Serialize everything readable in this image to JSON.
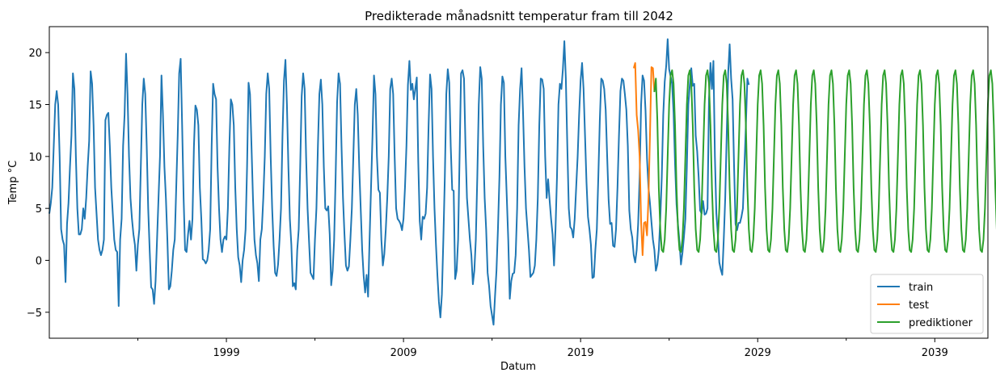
{
  "chart_data": {
    "type": "line",
    "title": "Predikterade månadsnitt temperatur fram till 2042",
    "xlabel": "Datum",
    "ylabel": "Temp °C",
    "xlim": [
      1989.0,
      2042.0
    ],
    "ylim": [
      -7.5,
      22.5
    ],
    "x_ticks": [
      {
        "value": 1999,
        "label": "1999"
      },
      {
        "value": 2009,
        "label": "2009"
      },
      {
        "value": 2019,
        "label": "2019"
      },
      {
        "value": 2029,
        "label": "2029"
      },
      {
        "value": 2039,
        "label": "2039"
      }
    ],
    "x_minor_ticks": [
      1994,
      2004,
      2014,
      2024,
      2034
    ],
    "y_ticks": [
      {
        "value": -5,
        "label": "−5"
      },
      {
        "value": 0,
        "label": "0"
      },
      {
        "value": 5,
        "label": "5"
      },
      {
        "value": 10,
        "label": "10"
      },
      {
        "value": 15,
        "label": "15"
      },
      {
        "value": 20,
        "label": "20"
      }
    ],
    "legend_position": "lower-right",
    "colors": {
      "train": "#1f77b4",
      "test": "#ff7f0e",
      "prediktioner": "#2ca02c"
    },
    "series": [
      {
        "name": "train",
        "start": 1989.0,
        "step": 0.0833333,
        "values": [
          4.5,
          5.5,
          7,
          11,
          15,
          16.3,
          15,
          10,
          3,
          2,
          1.5,
          -2.1,
          3.5,
          5.5,
          9,
          12,
          18,
          16.5,
          10,
          5,
          2.5,
          2.5,
          3,
          5,
          4,
          6,
          9,
          11.5,
          18.2,
          17,
          13,
          7,
          4.5,
          2,
          1,
          0.5,
          1,
          2,
          13.5,
          14,
          14.2,
          11,
          7,
          4.5,
          2,
          1,
          0.8,
          -4.4,
          2,
          4,
          11,
          14,
          19.9,
          16,
          10,
          6,
          4,
          2.5,
          1.5,
          -1,
          1.5,
          3,
          9,
          15,
          17.5,
          16,
          11,
          5,
          1,
          -2.6,
          -2.8,
          -4.2,
          -2,
          2,
          6,
          10,
          17.8,
          14,
          9,
          6,
          2,
          -2.8,
          -2.5,
          -1,
          1,
          2,
          7,
          12,
          18,
          19.4,
          13,
          6,
          1,
          0.8,
          2.5,
          3.8,
          2,
          4,
          11,
          14.9,
          14.5,
          13,
          7,
          4,
          0.1,
          0,
          -0.3,
          0,
          1,
          3,
          11,
          17,
          16,
          15.5,
          9,
          5,
          2,
          0.8,
          2,
          2.3,
          2,
          5,
          11,
          15.5,
          15,
          13,
          7,
          3,
          0.3,
          -0.5,
          -2.1,
          0,
          1,
          3,
          9,
          17.1,
          16,
          11,
          6,
          2,
          0.5,
          -0.3,
          -2,
          2,
          3,
          6,
          10,
          16,
          18,
          16.5,
          10,
          5,
          1.4,
          -1.2,
          -1.5,
          -0.4,
          2,
          5,
          12,
          17.3,
          19.3,
          15,
          9,
          4,
          1.5,
          -2.5,
          -2.2,
          -2.8,
          1,
          3,
          9,
          15.8,
          18,
          16.5,
          10,
          5,
          1.8,
          -1.2,
          -1.5,
          -1.8,
          2,
          5,
          11,
          16,
          17.4,
          15,
          9,
          5,
          4.8,
          5.2,
          2.5,
          -2.4,
          -1,
          2,
          8,
          15.2,
          18,
          17,
          11,
          6,
          2.5,
          -0.5,
          -1,
          -0.6,
          2,
          5,
          10,
          15,
          16.5,
          14,
          9,
          5,
          1,
          -1.5,
          -3.1,
          -1.4,
          -3.5,
          2,
          7,
          12,
          17.8,
          16,
          10,
          6.8,
          6.5,
          2,
          -0.5,
          0.6,
          3,
          6,
          10,
          16.5,
          17.5,
          16,
          10,
          5,
          4,
          3.8,
          3.5,
          2.9,
          4,
          7,
          11,
          16.9,
          19.2,
          16.4,
          17,
          15.5,
          16.5,
          17.6,
          9.5,
          3.8,
          2,
          4.2,
          4,
          4.5,
          7,
          13,
          17.9,
          16.5,
          10,
          5,
          1.5,
          -1.5,
          -4,
          -5.5,
          -3.3,
          2,
          8,
          16,
          18.4,
          17.1,
          11,
          6.8,
          6.7,
          -1.8,
          -1,
          2,
          10,
          18,
          18.3,
          17.5,
          11,
          6,
          4,
          2,
          0.5,
          -2.3,
          -1,
          2,
          8,
          15,
          18.6,
          17.5,
          11,
          6,
          3,
          -1.2,
          -2.5,
          -4.4,
          -5.3,
          -6.2,
          -3.5,
          -1,
          3,
          8,
          15,
          17.7,
          17.1,
          10,
          6,
          1.9,
          -3.7,
          -2,
          -1.3,
          -1.2,
          0.5,
          5,
          13,
          16.5,
          18.5,
          14.2,
          9,
          5,
          3,
          1,
          -1.6,
          -1.4,
          -1.2,
          -0.5,
          2,
          6,
          13,
          17.5,
          17.4,
          16.5,
          10,
          6,
          7.8,
          5.8,
          4,
          2.5,
          -0.5,
          3,
          8,
          15,
          17,
          16.5,
          18.4,
          21.1,
          17.5,
          11,
          5,
          3.2,
          3,
          2.2,
          4,
          7,
          10,
          14,
          17.3,
          19,
          16.5,
          12,
          7.5,
          4.2,
          3,
          1.5,
          -1.7,
          -1.6,
          1,
          3,
          8,
          13.4,
          17.5,
          17.3,
          16.5,
          14.5,
          10,
          5.8,
          3.5,
          3.6,
          1.4,
          1.3,
          3,
          7,
          12,
          16.3,
          17.5,
          17.3,
          16,
          14.5,
          11,
          4.8,
          3,
          2.2,
          0.5,
          -0.2,
          1,
          3.5,
          8,
          15,
          17.8,
          17.3,
          14.4,
          9.8,
          7,
          5.5,
          3.7,
          2,
          1,
          -1,
          -0.4,
          1,
          4,
          8,
          14,
          17.2,
          18.7,
          21.3,
          18.4,
          17.7,
          17,
          14.2,
          9.3,
          5.4,
          3.4,
          1.8,
          -0.4,
          0.7,
          2.2,
          4,
          9,
          15,
          16.9,
          18.5,
          16.8,
          17,
          12,
          10.5,
          8,
          4.8,
          4.5,
          5.7,
          4.4,
          4.5,
          5,
          15.5,
          19,
          16.5,
          19.2,
          10,
          4.5,
          2.5,
          -0.2,
          -0.9,
          -1.4,
          2,
          6,
          12,
          18,
          20.8,
          17.5,
          15.5,
          9,
          3.5,
          2.9,
          3.6,
          3.6,
          4.2,
          5,
          9,
          13,
          17.5,
          16.9
        ]
      },
      {
        "name": "test",
        "start": 2022.0,
        "step": 0.0833333,
        "values": [
          18.5,
          19,
          14,
          12.5,
          10,
          3.7,
          0.5,
          3.6,
          3.7,
          2.4,
          6,
          12,
          18.6,
          18.5,
          16.2
        ]
      },
      {
        "name": "prediktioner",
        "start": 2023.1667,
        "step": 0.0833333,
        "values": [
          16.2,
          17.5,
          13.5,
          7,
          3,
          1,
          0.8,
          2,
          5,
          10,
          15,
          17.8,
          18.3,
          17,
          13,
          7,
          3,
          1,
          0.8,
          2,
          5,
          10,
          15,
          17.8,
          18.3,
          17,
          13,
          7,
          3,
          1,
          0.8,
          2,
          5,
          10,
          15,
          17.8,
          18.3,
          17,
          13,
          7,
          3,
          1,
          0.8,
          2,
          5,
          10,
          15,
          17.8,
          18.3,
          17,
          13,
          7,
          3,
          1,
          0.8,
          2,
          5,
          10,
          15,
          17.8,
          18.3,
          17,
          13,
          7,
          3,
          1,
          0.8,
          2,
          5,
          10,
          15,
          17.8,
          18.3,
          17,
          13,
          7,
          3,
          1,
          0.8,
          2,
          5,
          10,
          15,
          17.8,
          18.3,
          17,
          13,
          7,
          3,
          1,
          0.8,
          2,
          5,
          10,
          15,
          17.8,
          18.3,
          17,
          13,
          7,
          3,
          1,
          0.8,
          2,
          5,
          10,
          15,
          17.8,
          18.3,
          17,
          13,
          7,
          3,
          1,
          0.8,
          2,
          5,
          10,
          15,
          17.8,
          18.3,
          17,
          13,
          7,
          3,
          1,
          0.8,
          2,
          5,
          10,
          15,
          17.8,
          18.3,
          17,
          13,
          7,
          3,
          1,
          0.8,
          2,
          5,
          10,
          15,
          17.8,
          18.3,
          17,
          13,
          7,
          3,
          1,
          0.8,
          2,
          5,
          10,
          15,
          17.8,
          18.3,
          17,
          13,
          7,
          3,
          1,
          0.8,
          2,
          5,
          10,
          15,
          17.8,
          18.3,
          17,
          13,
          7,
          3,
          1,
          0.8,
          2,
          5,
          10,
          15,
          17.8,
          18.3,
          17,
          13,
          7,
          3,
          1,
          0.8,
          2,
          5,
          10,
          15,
          17.8,
          18.3,
          17,
          13,
          7,
          3,
          1,
          0.8,
          2,
          5,
          10,
          15,
          17.8,
          18.3,
          17,
          13,
          7,
          3,
          1,
          0.8,
          2,
          5,
          10,
          15,
          17.8,
          18.3,
          17,
          13,
          7,
          3,
          1,
          0.8,
          2,
          5,
          10,
          15,
          17.8,
          18.3,
          17,
          13,
          7,
          3,
          1,
          0.8,
          2,
          5,
          10,
          15,
          17.8,
          18.3,
          17,
          13,
          7,
          3,
          1,
          0.8,
          2,
          5,
          10,
          15,
          18.5
        ]
      }
    ]
  }
}
